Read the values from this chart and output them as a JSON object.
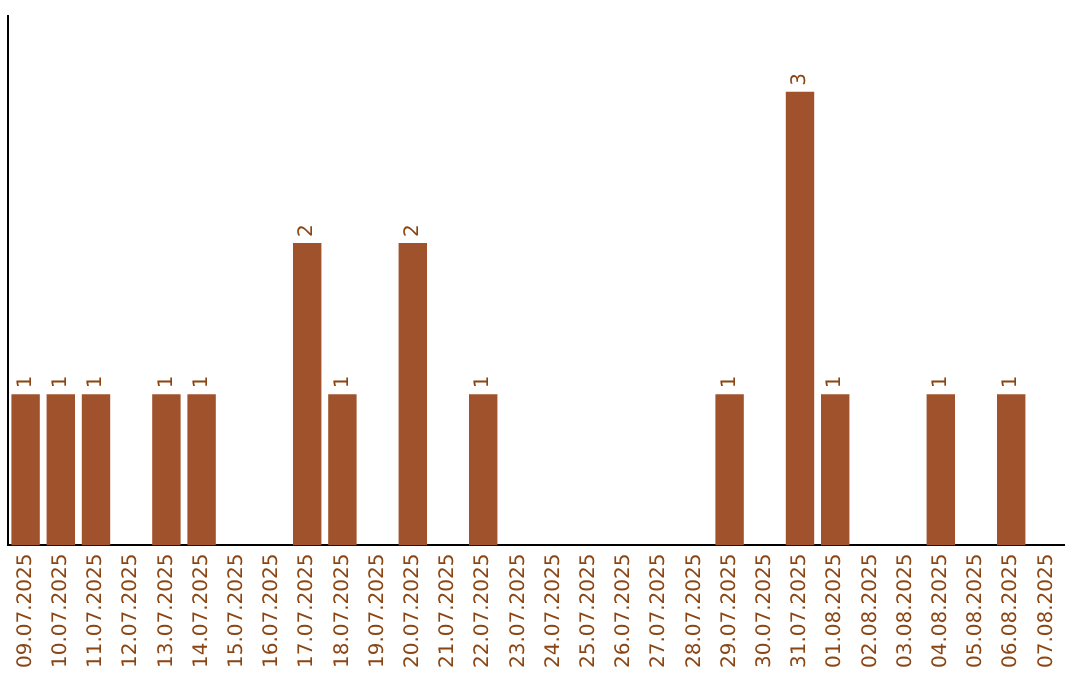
{
  "chart_data": {
    "type": "bar",
    "categories": [
      "09.07.2025",
      "10.07.2025",
      "11.07.2025",
      "12.07.2025",
      "13.07.2025",
      "14.07.2025",
      "15.07.2025",
      "16.07.2025",
      "17.07.2025",
      "18.07.2025",
      "19.07.2025",
      "20.07.2025",
      "21.07.2025",
      "22.07.2025",
      "23.07.2025",
      "24.07.2025",
      "25.07.2025",
      "26.07.2025",
      "27.07.2025",
      "28.07.2025",
      "29.07.2025",
      "30.07.2025",
      "31.07.2025",
      "01.08.2025",
      "02.08.2025",
      "03.08.2025",
      "04.08.2025",
      "05.08.2025",
      "06.08.2025",
      "07.08.2025"
    ],
    "values": [
      1,
      1,
      1,
      0,
      1,
      1,
      0,
      0,
      2,
      1,
      0,
      2,
      0,
      1,
      0,
      0,
      0,
      0,
      0,
      0,
      1,
      0,
      3,
      1,
      0,
      0,
      1,
      0,
      1,
      0
    ],
    "value_labels": [
      "1",
      "1",
      "1",
      null,
      "1",
      "1",
      null,
      null,
      "2",
      "1",
      null,
      "2",
      null,
      "1",
      null,
      null,
      null,
      null,
      null,
      null,
      "1",
      null,
      "3",
      "1",
      null,
      null,
      "1",
      null,
      "1",
      null
    ],
    "color": "#a0522d",
    "grid": false,
    "legend": false,
    "tick_labels": "x"
  }
}
